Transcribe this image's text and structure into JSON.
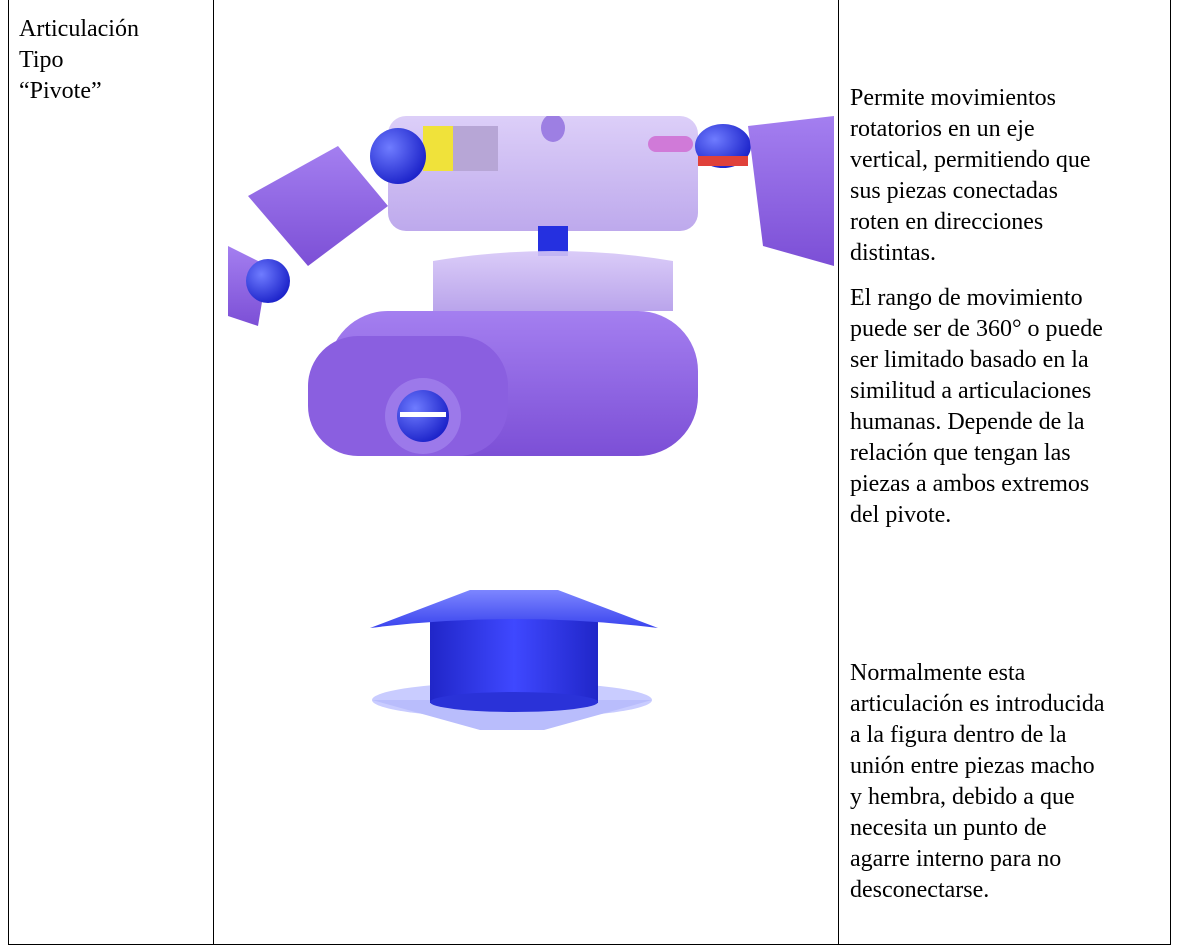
{
  "table": {
    "left_cell": {
      "lines": [
        "Articulación",
        "Tipo",
        "“Pivote”"
      ]
    },
    "right_cell": {
      "paragraphs": [
        {
          "lines": [
            "Permite movimientos",
            "rotatorios en un eje",
            "vertical, permitiendo que",
            "sus piezas conectadas",
            "roten en direcciones",
            "distintas."
          ]
        },
        {
          "lines": [
            "El rango de movimiento",
            "puede ser de 360° o puede",
            "ser limitado basado en la",
            "similitud a articulaciones",
            "humanas. Depende de la",
            "relación que tengan las",
            "piezas a ambos extremos",
            "del pivote."
          ]
        },
        {
          "lines": [
            "Normalmente esta",
            "articulación es introducida",
            "a la figura dentro de la",
            "unión entre piezas macho",
            "y hembra, debido a que",
            "necesita un punto de",
            "agarre interno para no",
            "desconectarse."
          ]
        }
      ]
    }
  }
}
